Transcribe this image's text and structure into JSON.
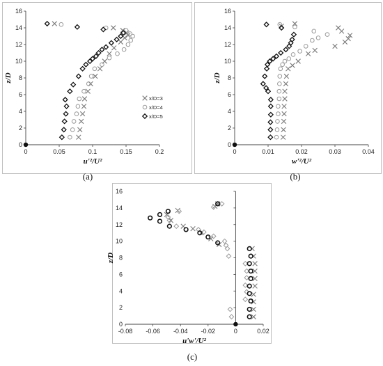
{
  "chart_data": [
    {
      "type": "scatter",
      "panel_label": "(a)",
      "xlabel": "u'²/U²",
      "ylabel": "z/D",
      "xlim": [
        0,
        0.2
      ],
      "ylim": [
        0,
        16
      ],
      "xticks": [
        "0",
        "0.05",
        "0.1",
        "0.15",
        "0.2"
      ],
      "yticks": [
        "0",
        "2",
        "4",
        "6",
        "8",
        "10",
        "12",
        "14",
        "16"
      ],
      "legend_position": "right-middle",
      "series": [
        {
          "name": "x/D=3",
          "marker": "x",
          "points": [
            [
              0,
              0
            ],
            [
              0.079,
              0.9
            ],
            [
              0.081,
              1.8
            ],
            [
              0.083,
              2.8
            ],
            [
              0.085,
              3.7
            ],
            [
              0.087,
              4.6
            ],
            [
              0.088,
              5.5
            ],
            [
              0.093,
              6.4
            ],
            [
              0.097,
              7.3
            ],
            [
              0.104,
              8.2
            ],
            [
              0.111,
              9.1
            ],
            [
              0.118,
              10.0
            ],
            [
              0.125,
              10.9
            ],
            [
              0.132,
              11.6
            ],
            [
              0.142,
              12.3
            ],
            [
              0.148,
              12.8
            ],
            [
              0.153,
              13.1
            ],
            [
              0.151,
              13.4
            ],
            [
              0.145,
              13.7
            ],
            [
              0.131,
              14.0
            ],
            [
              0.043,
              14.5
            ]
          ]
        },
        {
          "name": "x/D=4",
          "marker": "o",
          "points": [
            [
              0,
              0
            ],
            [
              0.066,
              0.9
            ],
            [
              0.07,
              1.8
            ],
            [
              0.072,
              2.8
            ],
            [
              0.076,
              3.7
            ],
            [
              0.078,
              4.6
            ],
            [
              0.08,
              5.5
            ],
            [
              0.087,
              6.4
            ],
            [
              0.094,
              7.3
            ],
            [
              0.098,
              8.2
            ],
            [
              0.103,
              9.1
            ],
            [
              0.114,
              9.6
            ],
            [
              0.125,
              10.4
            ],
            [
              0.137,
              10.9
            ],
            [
              0.147,
              11.4
            ],
            [
              0.153,
              12.0
            ],
            [
              0.157,
              12.5
            ],
            [
              0.16,
              13.0
            ],
            [
              0.156,
              13.3
            ],
            [
              0.15,
              13.7
            ],
            [
              0.12,
              14.0
            ],
            [
              0.053,
              14.4
            ]
          ]
        },
        {
          "name": "x/D=5",
          "marker": "diamond",
          "points": [
            [
              0,
              0
            ],
            [
              0.054,
              0.9
            ],
            [
              0.057,
              1.8
            ],
            [
              0.058,
              2.8
            ],
            [
              0.06,
              3.7
            ],
            [
              0.061,
              4.6
            ],
            [
              0.059,
              5.4
            ],
            [
              0.066,
              6.4
            ],
            [
              0.071,
              7.2
            ],
            [
              0.079,
              8.2
            ],
            [
              0.085,
              9.1
            ],
            [
              0.09,
              9.6
            ],
            [
              0.096,
              10.0
            ],
            [
              0.1,
              10.3
            ],
            [
              0.105,
              10.6
            ],
            [
              0.109,
              11.0
            ],
            [
              0.114,
              11.4
            ],
            [
              0.12,
              11.7
            ],
            [
              0.128,
              12.2
            ],
            [
              0.136,
              12.6
            ],
            [
              0.142,
              13.0
            ],
            [
              0.146,
              13.4
            ],
            [
              0.116,
              13.8
            ],
            [
              0.077,
              14.1
            ],
            [
              0.032,
              14.5
            ]
          ]
        }
      ]
    },
    {
      "type": "scatter",
      "panel_label": "(b)",
      "xlabel": "w'²/U²",
      "ylabel": "z/D",
      "xlim": [
        0,
        0.04
      ],
      "ylim": [
        0,
        16
      ],
      "xticks": [
        "0",
        "0.01",
        "0.02",
        "0.03",
        "0.04"
      ],
      "yticks": [
        "0",
        "2",
        "4",
        "6",
        "8",
        "10",
        "12",
        "14",
        "16"
      ],
      "series": [
        {
          "name": "x/D=3",
          "marker": "x",
          "points": [
            [
              0,
              0
            ],
            [
              0.0145,
              0.9
            ],
            [
              0.0146,
              1.8
            ],
            [
              0.0147,
              2.8
            ],
            [
              0.0148,
              3.7
            ],
            [
              0.0148,
              4.6
            ],
            [
              0.015,
              5.5
            ],
            [
              0.015,
              6.4
            ],
            [
              0.0153,
              7.3
            ],
            [
              0.0155,
              8.2
            ],
            [
              0.016,
              9.1
            ],
            [
              0.0173,
              9.5
            ],
            [
              0.019,
              10.0
            ],
            [
              0.022,
              10.9
            ],
            [
              0.024,
              11.3
            ],
            [
              0.03,
              11.8
            ],
            [
              0.033,
              12.3
            ],
            [
              0.034,
              12.7
            ],
            [
              0.0345,
              13.1
            ],
            [
              0.032,
              13.6
            ],
            [
              0.031,
              14.0
            ],
            [
              0.014,
              14.2
            ],
            [
              0.018,
              14.5
            ]
          ]
        },
        {
          "name": "x/D=4",
          "marker": "o",
          "points": [
            [
              0,
              0
            ],
            [
              0.0125,
              0.9
            ],
            [
              0.0127,
              1.8
            ],
            [
              0.0128,
              2.8
            ],
            [
              0.013,
              3.7
            ],
            [
              0.013,
              4.6
            ],
            [
              0.0133,
              5.5
            ],
            [
              0.0133,
              6.4
            ],
            [
              0.0134,
              7.3
            ],
            [
              0.0135,
              8.2
            ],
            [
              0.0137,
              9.1
            ],
            [
              0.0143,
              9.6
            ],
            [
              0.015,
              10.0
            ],
            [
              0.0162,
              10.3
            ],
            [
              0.0175,
              10.8
            ],
            [
              0.0195,
              11.2
            ],
            [
              0.0213,
              11.8
            ],
            [
              0.0232,
              12.5
            ],
            [
              0.025,
              12.8
            ],
            [
              0.0277,
              13.2
            ],
            [
              0.0237,
              13.6
            ],
            [
              0.018,
              14.1
            ],
            [
              0.0135,
              14.4
            ]
          ]
        },
        {
          "name": "x/D=5",
          "marker": "diamond",
          "points": [
            [
              0,
              0
            ],
            [
              0.0107,
              0.9
            ],
            [
              0.0107,
              1.8
            ],
            [
              0.0107,
              2.7
            ],
            [
              0.0108,
              3.6
            ],
            [
              0.0108,
              4.6
            ],
            [
              0.0108,
              5.4
            ],
            [
              0.01,
              6.4
            ],
            [
              0.0094,
              6.8
            ],
            [
              0.0085,
              7.3
            ],
            [
              0.009,
              8.2
            ],
            [
              0.0096,
              9.1
            ],
            [
              0.0098,
              9.6
            ],
            [
              0.0105,
              10.0
            ],
            [
              0.0115,
              10.3
            ],
            [
              0.0125,
              10.6
            ],
            [
              0.0138,
              11.0
            ],
            [
              0.0153,
              11.4
            ],
            [
              0.0163,
              11.8
            ],
            [
              0.0168,
              12.2
            ],
            [
              0.0172,
              12.6
            ],
            [
              0.0177,
              13.2
            ],
            [
              0.014,
              14.0
            ],
            [
              0.0095,
              14.4
            ]
          ]
        }
      ]
    },
    {
      "type": "scatter",
      "panel_label": "(c)",
      "xlabel": "u'w'/U²",
      "ylabel": "z/D",
      "xlim": [
        -0.08,
        0.02
      ],
      "ylim": [
        0,
        16
      ],
      "xticks": [
        "-0.08",
        "-0.06",
        "-0.04",
        "-0.02",
        "0",
        "0.02"
      ],
      "yticks": [
        "0",
        "2",
        "4",
        "6",
        "8",
        "10",
        "12",
        "14",
        "16"
      ],
      "series": [
        {
          "name": "x/D=3",
          "marker": "x",
          "points": [
            [
              0,
              0
            ],
            [
              0.013,
              0.9
            ],
            [
              0.013,
              1.8
            ],
            [
              0.013,
              2.7
            ],
            [
              0.013,
              3.6
            ],
            [
              0.014,
              4.6
            ],
            [
              0.014,
              5.5
            ],
            [
              0.014,
              6.4
            ],
            [
              0.014,
              7.3
            ],
            [
              0.013,
              8.2
            ],
            [
              0.012,
              9.1
            ],
            [
              -0.012,
              9.6
            ],
            [
              -0.018,
              10.3
            ],
            [
              -0.025,
              11.0
            ],
            [
              -0.031,
              11.5
            ],
            [
              -0.038,
              11.8
            ],
            [
              -0.047,
              12.5
            ],
            [
              -0.05,
              13.2
            ],
            [
              -0.042,
              13.7
            ],
            [
              -0.015,
              14.2
            ],
            [
              -0.013,
              14.5
            ]
          ]
        },
        {
          "name": "x/D=4",
          "marker": "diamond",
          "points": [
            [
              0,
              0
            ],
            [
              -0.003,
              0.9
            ],
            [
              -0.004,
              1.8
            ],
            [
              -0.005,
              8.2
            ],
            [
              -0.006,
              9.1
            ],
            [
              -0.007,
              9.5
            ],
            [
              -0.008,
              10.0
            ],
            [
              -0.016,
              10.6
            ],
            [
              -0.023,
              11.1
            ],
            [
              -0.027,
              11.4
            ],
            [
              -0.043,
              11.8
            ],
            [
              -0.048,
              12.5
            ],
            [
              -0.049,
              12.9
            ],
            [
              -0.041,
              13.6
            ],
            [
              -0.016,
              14.1
            ],
            [
              -0.01,
              14.5
            ],
            [
              0.007,
              3.0
            ],
            [
              0.008,
              3.9
            ],
            [
              0.007,
              4.7
            ],
            [
              0.008,
              5.6
            ],
            [
              0.008,
              6.4
            ],
            [
              0.007,
              7.3
            ]
          ]
        },
        {
          "name": "x/D=5",
          "marker": "o",
          "points": [
            [
              0,
              0
            ],
            [
              0.01,
              0.9
            ],
            [
              0.01,
              1.8
            ],
            [
              0.011,
              2.8
            ],
            [
              0.01,
              3.7
            ],
            [
              0.01,
              4.6
            ],
            [
              0.011,
              5.5
            ],
            [
              0.011,
              6.4
            ],
            [
              0.01,
              7.3
            ],
            [
              0.011,
              8.2
            ],
            [
              0.01,
              9.1
            ],
            [
              -0.013,
              9.8
            ],
            [
              -0.02,
              10.5
            ],
            [
              -0.026,
              11.0
            ],
            [
              -0.036,
              11.4
            ],
            [
              -0.048,
              11.8
            ],
            [
              -0.055,
              12.4
            ],
            [
              -0.062,
              12.8
            ],
            [
              -0.055,
              13.2
            ],
            [
              -0.049,
              13.6
            ],
            [
              -0.013,
              14.5
            ]
          ]
        }
      ]
    }
  ]
}
